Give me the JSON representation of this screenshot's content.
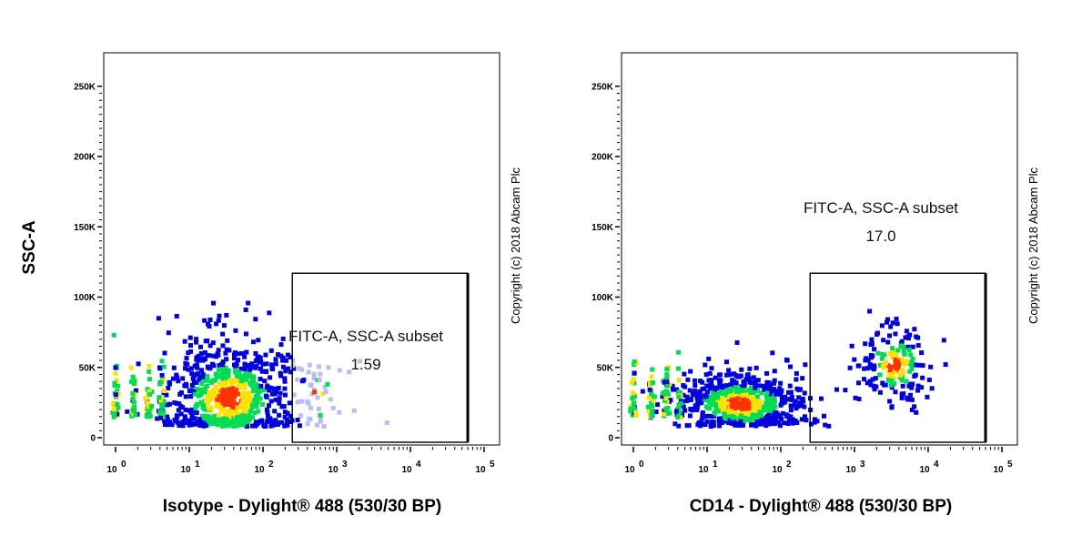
{
  "chart_data": [
    {
      "type": "scatter",
      "subtype": "flow-cytometry-density-dot-plot",
      "xlabel": "Isotype - Dylight® 488 (530/30 BP)",
      "ylabel": "SSC-A",
      "xscale": "log",
      "xlim": [
        1,
        100000
      ],
      "x_ticks": [
        {
          "value": 1,
          "base": "10",
          "exp": "0"
        },
        {
          "value": 10,
          "base": "10",
          "exp": "1"
        },
        {
          "value": 100,
          "base": "10",
          "exp": "2"
        },
        {
          "value": 1000,
          "base": "10",
          "exp": "3"
        },
        {
          "value": 10000,
          "base": "10",
          "exp": "4"
        },
        {
          "value": 100000,
          "base": "10",
          "exp": "5"
        }
      ],
      "ylim": [
        0,
        262144
      ],
      "y_ticks": [
        {
          "value": 0,
          "label": "0"
        },
        {
          "value": 50000,
          "label": "50K"
        },
        {
          "value": 100000,
          "label": "100K"
        },
        {
          "value": 150000,
          "label": "150K"
        },
        {
          "value": 200000,
          "label": "200K"
        },
        {
          "value": 250000,
          "label": "250K"
        }
      ],
      "gate": {
        "name": "FITC-A, SSC-A subset",
        "value": "1.59",
        "x_range": [
          250,
          60000
        ],
        "y_range": [
          0,
          117000
        ]
      },
      "populations": [
        {
          "x_center": 35,
          "y_center": 28000,
          "x_spread_decades": 0.45,
          "y_spread": 20000,
          "count": 750
        },
        {
          "x_center": 450,
          "y_center": 28000,
          "x_spread_decades": 0.3,
          "y_spread": 16000,
          "count": 40
        }
      ],
      "copyright": "Copyright (c) 2018 Abcam Plc",
      "colors": {
        "low": "#0000dd",
        "mid": "#00dd55",
        "high": "#ffe100",
        "peak": "#ff3300",
        "gated_faint": "#b8bef0"
      }
    },
    {
      "type": "scatter",
      "subtype": "flow-cytometry-density-dot-plot",
      "xlabel": "CD14 - Dylight® 488 (530/30 BP)",
      "ylabel": "",
      "xscale": "log",
      "xlim": [
        1,
        100000
      ],
      "x_ticks": [
        {
          "value": 1,
          "base": "10",
          "exp": "0"
        },
        {
          "value": 10,
          "base": "10",
          "exp": "1"
        },
        {
          "value": 100,
          "base": "10",
          "exp": "2"
        },
        {
          "value": 1000,
          "base": "10",
          "exp": "3"
        },
        {
          "value": 10000,
          "base": "10",
          "exp": "4"
        },
        {
          "value": 100000,
          "base": "10",
          "exp": "5"
        }
      ],
      "ylim": [
        0,
        262144
      ],
      "y_ticks": [
        {
          "value": 0,
          "label": "0"
        },
        {
          "value": 50000,
          "label": "50K"
        },
        {
          "value": 100000,
          "label": "100K"
        },
        {
          "value": 150000,
          "label": "150K"
        },
        {
          "value": 200000,
          "label": "200K"
        },
        {
          "value": 250000,
          "label": "250K"
        }
      ],
      "gate": {
        "name": "FITC-A, SSC-A subset",
        "value": "17.0",
        "x_range": [
          250,
          60000
        ],
        "y_range": [
          0,
          117000
        ]
      },
      "populations": [
        {
          "x_center": 28,
          "y_center": 24000,
          "x_spread_decades": 0.45,
          "y_spread": 11000,
          "count": 620
        },
        {
          "x_center": 3500,
          "y_center": 52000,
          "x_spread_decades": 0.25,
          "y_spread": 14000,
          "count": 180
        }
      ],
      "copyright": "Copyright (c) 2018 Abcam Plc",
      "colors": {
        "low": "#0000dd",
        "mid": "#00dd55",
        "high": "#ffe100",
        "peak": "#ff3300",
        "gated_faint": "#b8bef0"
      }
    }
  ]
}
